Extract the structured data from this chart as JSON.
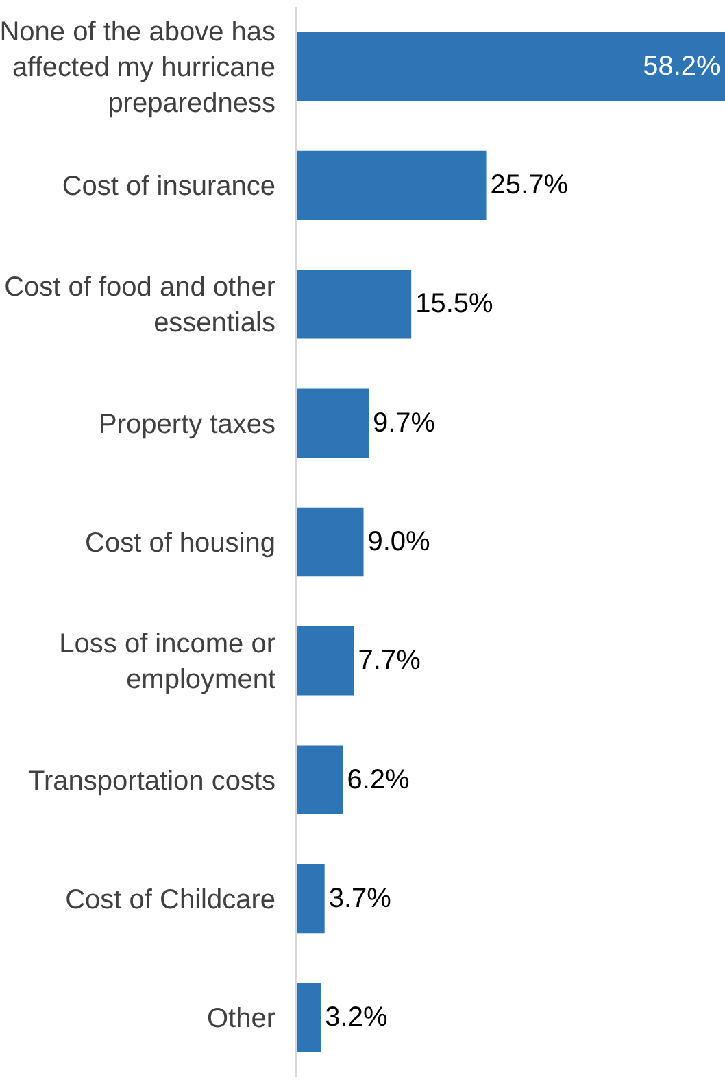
{
  "chart_data": {
    "type": "bar",
    "orientation": "horizontal",
    "categories": [
      "None of the above has affected my hurricane preparedness",
      "Cost of insurance",
      "Cost of food and other essentials",
      "Property taxes",
      "Cost of housing",
      "Loss of income or employment",
      "Transportation costs",
      "Cost of Childcare",
      "Other"
    ],
    "values": [
      58.2,
      25.7,
      15.5,
      9.7,
      9.0,
      7.7,
      6.2,
      3.7,
      3.2
    ],
    "value_labels": [
      "58.2%",
      "25.7%",
      "15.5%",
      "9.7%",
      "9.0%",
      "7.7%",
      "6.2%",
      "3.7%",
      "3.2%"
    ],
    "color": "#2e75b6"
  }
}
